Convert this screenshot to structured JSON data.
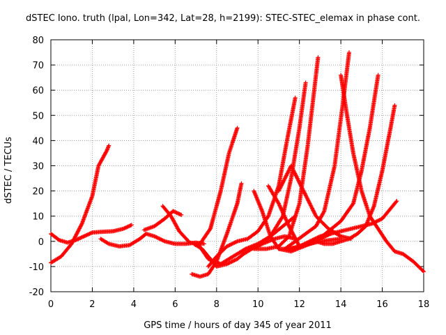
{
  "chart_data": {
    "type": "scatter",
    "title": "dSTEC Iono. truth (lpal, Lon=342, Lat=28, h=2199): STEC-STEC_elemax in phase cont.",
    "xlabel": "GPS time / hours of day 345 of year 2011",
    "ylabel": "dSTEC  / TECUs",
    "xlim": [
      0,
      18
    ],
    "ylim": [
      -20,
      80
    ],
    "x_ticks": [
      "0",
      "2",
      "4",
      "6",
      "8",
      "10",
      "12",
      "14",
      "16",
      "18"
    ],
    "y_ticks": [
      "-20",
      "-10",
      "0",
      "10",
      "20",
      "30",
      "40",
      "50",
      "60",
      "70",
      "80"
    ],
    "grid": true,
    "marker": "plus",
    "color": "#ff0000",
    "series": [
      {
        "x": [
          0,
          0.5,
          1.0,
          1.5,
          2.0,
          2.3,
          2.5,
          2.7,
          2.8
        ],
        "y": [
          -8.5,
          -6,
          -1,
          7,
          18,
          30,
          33,
          36,
          38
        ]
      },
      {
        "x": [
          0,
          0.4,
          0.8,
          1.2,
          1.6,
          2.0,
          2.5,
          3.0,
          3.5,
          3.9
        ],
        "y": [
          3,
          0.5,
          -0.5,
          0.5,
          2,
          3.5,
          3.8,
          4,
          5,
          6.5
        ]
      },
      {
        "x": [
          2.4,
          2.8,
          3.3,
          3.8,
          4.3,
          4.6,
          5.0,
          5.5,
          6.0,
          6.5,
          7.0,
          7.4
        ],
        "y": [
          1,
          -1,
          -2,
          -1.5,
          1,
          3,
          2,
          0,
          -1,
          -1,
          -0.5,
          -1
        ]
      },
      {
        "x": [
          4.5,
          5.0,
          5.5,
          5.9,
          6.3
        ],
        "y": [
          4.5,
          6,
          9,
          12,
          10.5
        ]
      },
      {
        "x": [
          5.4,
          5.8,
          6.2,
          6.7,
          7.2,
          7.7,
          8.2,
          8.6,
          9.0
        ],
        "y": [
          14,
          10,
          4,
          -0.5,
          -1,
          5,
          20,
          35,
          45
        ]
      },
      {
        "x": [
          6.9,
          7.3,
          7.6,
          8.0,
          8.5,
          9.0,
          9.3,
          9.7,
          10.2,
          10.8,
          11.3,
          11.8
        ],
        "y": [
          -1,
          -3,
          -6,
          -10,
          -9,
          -7,
          -5,
          -3,
          -1,
          1,
          2,
          1
        ]
      },
      {
        "x": [
          6.8,
          7.2,
          7.6,
          8.0,
          8.5,
          9.0,
          9.2
        ],
        "y": [
          -13,
          -14,
          -13,
          -8,
          3,
          15,
          23
        ]
      },
      {
        "x": [
          7.1,
          7.6,
          8.2,
          8.8,
          9.4,
          10.0,
          10.6,
          11.2,
          11.8
        ],
        "y": [
          -1,
          -7,
          -9,
          -6,
          -3,
          -1,
          2,
          6,
          10
        ]
      },
      {
        "x": [
          7.6,
          8.0,
          8.5,
          9.0,
          9.5,
          10.0,
          10.5,
          11.0,
          11.4,
          11.8
        ],
        "y": [
          -10,
          -6,
          -2,
          0,
          1,
          4,
          10,
          22,
          40,
          57
        ]
      },
      {
        "x": [
          9.8,
          10.2,
          10.6,
          11.0,
          11.5,
          12.0,
          12.5,
          13.0,
          13.5,
          14.0
        ],
        "y": [
          20,
          12,
          2,
          -3,
          -3,
          -2,
          -1,
          0,
          0.5,
          1
        ]
      },
      {
        "x": [
          10.5,
          11.0,
          11.5,
          12.0,
          12.5,
          13.0,
          13.5
        ],
        "y": [
          22,
          15,
          6,
          -2,
          -1,
          1,
          3
        ]
      },
      {
        "x": [
          9.8,
          10.4,
          11.0,
          11.5,
          12.0,
          12.4,
          12.9
        ],
        "y": [
          -3,
          -3,
          -2,
          2,
          15,
          38,
          73
        ]
      },
      {
        "x": [
          10.0,
          10.6,
          11.2,
          11.6,
          12.0,
          12.3
        ],
        "y": [
          -2,
          2,
          10,
          25,
          45,
          63
        ]
      },
      {
        "x": [
          11.0,
          11.6,
          12.2,
          12.8,
          13.4,
          14.0,
          14.5
        ],
        "y": [
          20,
          30,
          20,
          10,
          5,
          2,
          1
        ]
      },
      {
        "x": [
          11.3,
          11.8,
          12.3,
          12.8,
          13.2,
          13.7,
          14.1,
          14.4
        ],
        "y": [
          -3,
          0,
          3,
          6,
          12,
          30,
          55,
          75
        ]
      },
      {
        "x": [
          11.0,
          11.6,
          12.2,
          12.8,
          13.4,
          14.0,
          14.6,
          15.0,
          15.4,
          15.8
        ],
        "y": [
          -3,
          -4,
          -2,
          0,
          4,
          8,
          15,
          28,
          45,
          66
        ]
      },
      {
        "x": [
          12.8,
          13.2,
          13.6,
          14.0,
          14.4,
          14.8,
          15.2,
          15.6,
          16.0,
          16.4,
          16.6
        ],
        "y": [
          0,
          -1,
          -1,
          0,
          1,
          3,
          6,
          14,
          28,
          45,
          54
        ]
      },
      {
        "x": [
          11.5,
          12.0,
          12.5,
          13.0,
          13.5,
          14.0,
          14.5,
          15.0,
          15.5,
          16.0,
          16.5,
          16.7
        ],
        "y": [
          -3,
          -2,
          0,
          2,
          3,
          4,
          5,
          6,
          7,
          9,
          14,
          16
        ]
      },
      {
        "x": [
          14.0,
          14.3,
          14.6,
          15.0,
          15.4,
          15.8,
          16.2,
          16.6,
          17.0,
          17.5,
          18.0
        ],
        "y": [
          66,
          50,
          35,
          20,
          10,
          5,
          0,
          -4,
          -5,
          -8,
          -12
        ]
      }
    ]
  }
}
